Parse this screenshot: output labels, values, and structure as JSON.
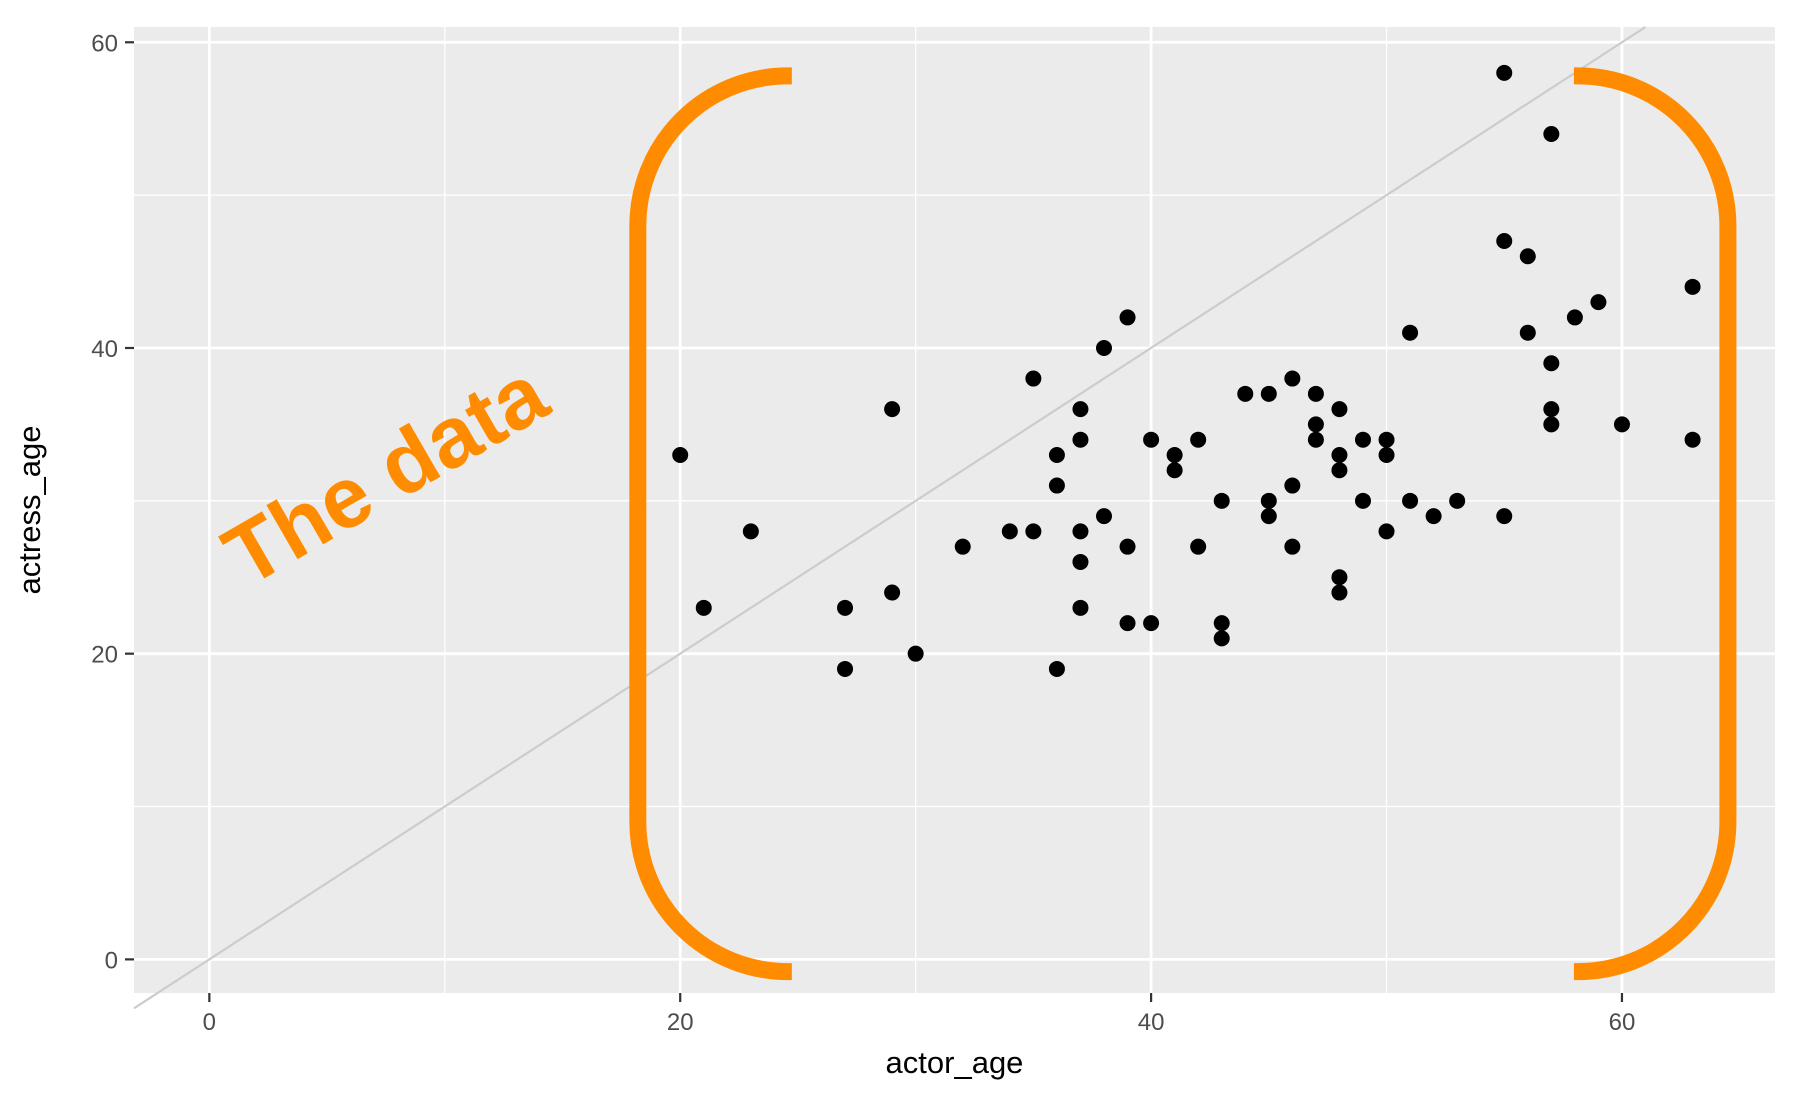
{
  "chart_data": {
    "type": "scatter",
    "title": "",
    "xlabel": "actor_age",
    "ylabel": "actress_age",
    "xlim": [
      -3.2,
      66.5
    ],
    "ylim": [
      -2.2,
      61
    ],
    "x_ticks": [
      0,
      20,
      40,
      60
    ],
    "y_ticks": [
      0,
      20,
      40,
      60
    ],
    "x_minor": [
      10,
      30,
      50
    ],
    "y_minor": [
      10,
      30,
      50
    ],
    "grid": true,
    "legend": "none",
    "reference_line": {
      "slope": 1,
      "intercept": 0,
      "color": "#cccccc"
    },
    "point_color": "#000000",
    "points": [
      {
        "x": 20,
        "y": 33
      },
      {
        "x": 21,
        "y": 23
      },
      {
        "x": 23,
        "y": 28
      },
      {
        "x": 27,
        "y": 23
      },
      {
        "x": 27,
        "y": 19
      },
      {
        "x": 29,
        "y": 36
      },
      {
        "x": 29,
        "y": 24
      },
      {
        "x": 30,
        "y": 20
      },
      {
        "x": 32,
        "y": 27
      },
      {
        "x": 34,
        "y": 28
      },
      {
        "x": 35,
        "y": 38
      },
      {
        "x": 35,
        "y": 28
      },
      {
        "x": 36,
        "y": 33
      },
      {
        "x": 36,
        "y": 31
      },
      {
        "x": 36,
        "y": 19
      },
      {
        "x": 37,
        "y": 36
      },
      {
        "x": 37,
        "y": 34
      },
      {
        "x": 37,
        "y": 28
      },
      {
        "x": 37,
        "y": 26
      },
      {
        "x": 37,
        "y": 23
      },
      {
        "x": 38,
        "y": 40
      },
      {
        "x": 38,
        "y": 29
      },
      {
        "x": 39,
        "y": 42
      },
      {
        "x": 39,
        "y": 27
      },
      {
        "x": 39,
        "y": 22
      },
      {
        "x": 40,
        "y": 34
      },
      {
        "x": 40,
        "y": 22
      },
      {
        "x": 41,
        "y": 33
      },
      {
        "x": 41,
        "y": 32
      },
      {
        "x": 42,
        "y": 34
      },
      {
        "x": 42,
        "y": 27
      },
      {
        "x": 43,
        "y": 30
      },
      {
        "x": 43,
        "y": 22
      },
      {
        "x": 43,
        "y": 21
      },
      {
        "x": 44,
        "y": 37
      },
      {
        "x": 45,
        "y": 37
      },
      {
        "x": 45,
        "y": 30
      },
      {
        "x": 45,
        "y": 29
      },
      {
        "x": 46,
        "y": 38
      },
      {
        "x": 46,
        "y": 31
      },
      {
        "x": 46,
        "y": 27
      },
      {
        "x": 47,
        "y": 37
      },
      {
        "x": 47,
        "y": 35
      },
      {
        "x": 47,
        "y": 34
      },
      {
        "x": 48,
        "y": 36
      },
      {
        "x": 48,
        "y": 33
      },
      {
        "x": 48,
        "y": 32
      },
      {
        "x": 48,
        "y": 25
      },
      {
        "x": 48,
        "y": 24
      },
      {
        "x": 49,
        "y": 34
      },
      {
        "x": 49,
        "y": 30
      },
      {
        "x": 50,
        "y": 34
      },
      {
        "x": 50,
        "y": 33
      },
      {
        "x": 50,
        "y": 28
      },
      {
        "x": 51,
        "y": 41
      },
      {
        "x": 51,
        "y": 30
      },
      {
        "x": 52,
        "y": 29
      },
      {
        "x": 53,
        "y": 30
      },
      {
        "x": 55,
        "y": 58
      },
      {
        "x": 55,
        "y": 47
      },
      {
        "x": 55,
        "y": 29
      },
      {
        "x": 56,
        "y": 46
      },
      {
        "x": 56,
        "y": 41
      },
      {
        "x": 57,
        "y": 54
      },
      {
        "x": 57,
        "y": 39
      },
      {
        "x": 57,
        "y": 36
      },
      {
        "x": 57,
        "y": 35
      },
      {
        "x": 58,
        "y": 42
      },
      {
        "x": 59,
        "y": 43
      },
      {
        "x": 60,
        "y": 35
      },
      {
        "x": 63,
        "y": 44
      },
      {
        "x": 63,
        "y": 34
      }
    ],
    "annotation": {
      "text": "The data",
      "color": "#ff8c00",
      "bracket_range_x": [
        18.2,
        64.5
      ],
      "bracket_range_y": [
        -0.8,
        57.8
      ]
    }
  }
}
